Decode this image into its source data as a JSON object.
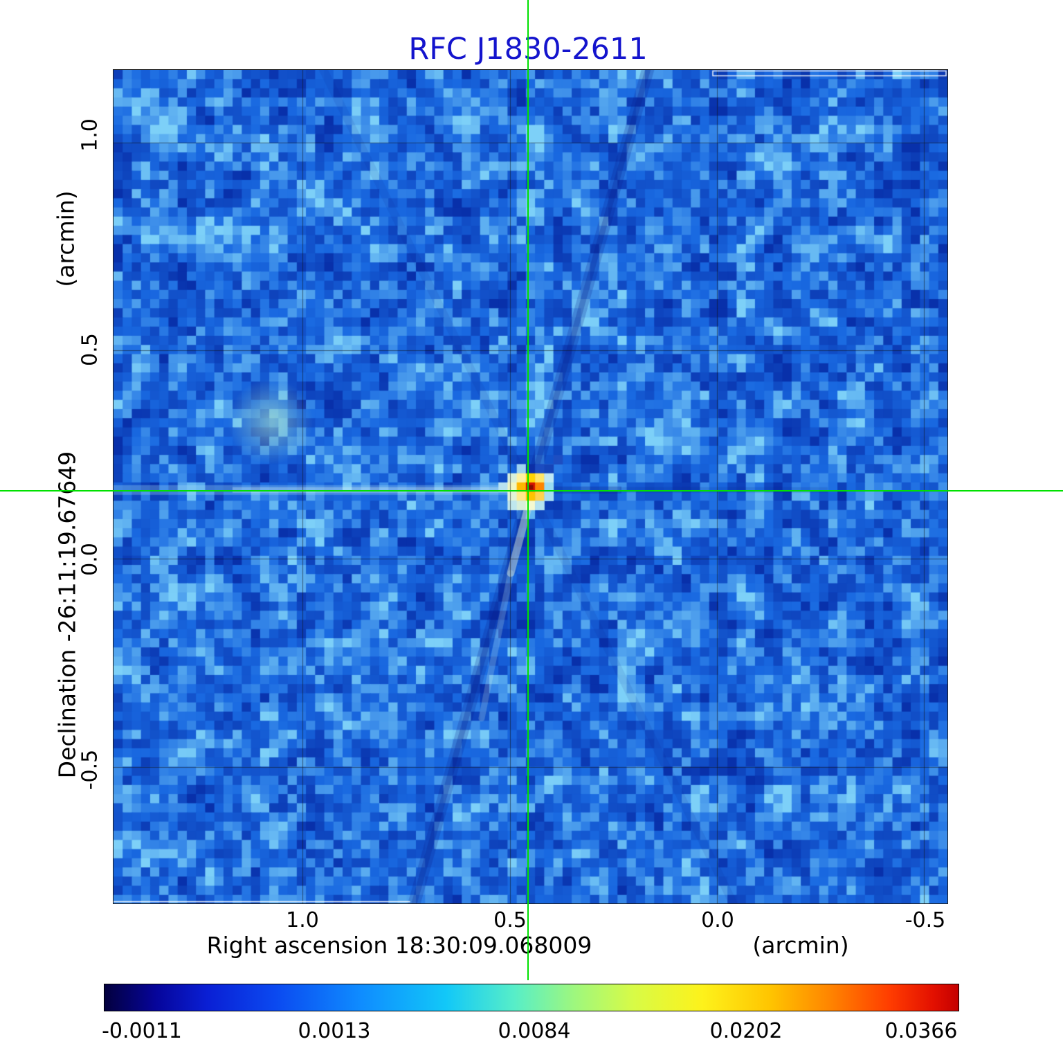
{
  "title": "RFC J1830-2611",
  "colors": {
    "title_text": "#1414cd",
    "crosshair": "#00e100",
    "axis_text": "#000000",
    "background_sky": "#1c69e1",
    "peak_color": "#d61500"
  },
  "chart_data": {
    "type": "heatmap",
    "title": "RFC J1830-2611",
    "xlabel": "Right ascension  18:30:09.068009",
    "xunit": "(arcmin)",
    "ylabel": "Declination  -26:11:19.67649",
    "yunit": "(arcmin)",
    "x_tick_labels": [
      "1.0",
      "0.5",
      "0.0",
      "-0.5"
    ],
    "x_tick_values": [
      1.0,
      0.5,
      0.0,
      -0.5
    ],
    "y_tick_labels": [
      "1.0",
      "0.5",
      "0.0",
      "-0.5"
    ],
    "y_tick_values": [
      1.0,
      0.5,
      0.0,
      -0.5
    ],
    "x_range": [
      1.457,
      -0.557
    ],
    "y_range": [
      1.174,
      -0.828
    ],
    "grid": true,
    "legend_position": "none",
    "colormap": "blue-cyan-yellow-red rainbow",
    "colorbar_ticks": [
      "-0.0011",
      "0.0013",
      "0.0084",
      "0.0202",
      "0.0366"
    ],
    "colorbar_values": [
      -0.0011,
      0.0013,
      0.0084,
      0.0202,
      0.0366
    ],
    "peak": {
      "ra_offset_arcmin": 0.451,
      "dec_offset_arcmin": 0.165,
      "value": 0.0366
    },
    "crosshair_ra_arcmin": 0.451,
    "crosshair_dec_arcmin": 0.165
  }
}
